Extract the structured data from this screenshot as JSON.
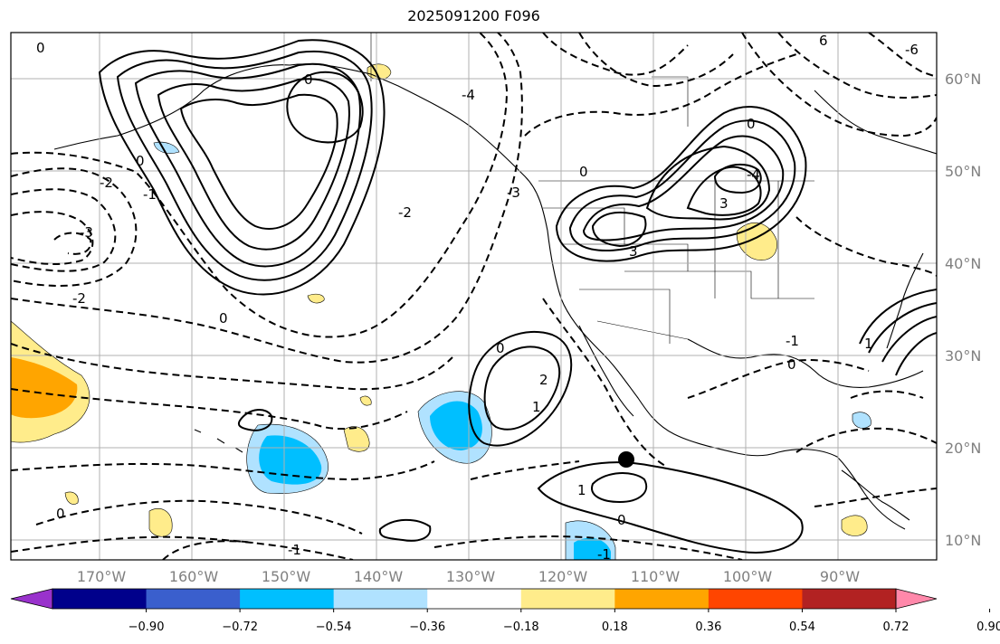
{
  "title": "2025091200 F096",
  "lat_labels": [
    "60°N",
    "50°N",
    "40°N",
    "30°N",
    "20°N",
    "10°N"
  ],
  "lon_labels": [
    "170°W",
    "160°W",
    "150°W",
    "140°W",
    "130°W",
    "120°W",
    "110°W",
    "100°W",
    "90°W"
  ],
  "colorbar": {
    "ticks": [
      "−0.90",
      "−0.72",
      "−0.54",
      "−0.36",
      "−0.18",
      "0.18",
      "0.36",
      "0.54",
      "0.72",
      "0.90"
    ],
    "colors": [
      "#9932cc",
      "#00008b",
      "#3a5fcd",
      "#00bfff",
      "#b0e2ff",
      "#ffffff",
      "#ffec8b",
      "#ffa500",
      "#ff4500",
      "#b22222",
      "#ff88aa"
    ]
  },
  "contour_labels": [
    "0",
    "6",
    "0",
    "-2",
    "-1",
    "-3",
    "-2",
    "0",
    "-6",
    "-4",
    "-3",
    "0",
    "-4",
    "3",
    "0",
    "3",
    "-2",
    "0",
    "2",
    "1",
    "-1",
    "0",
    "0",
    "1",
    "-1",
    "-1",
    "0",
    "0",
    "1"
  ],
  "marker": "storm-center"
}
